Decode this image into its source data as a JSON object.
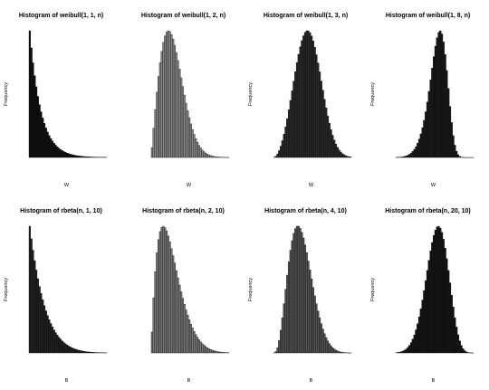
{
  "chart_data": [
    {
      "type": "bar",
      "title": "Histogram of weibull(1, 1, n)",
      "xlabel": "W",
      "ylabel": "Frequency",
      "dist": "weibull",
      "shape": 1,
      "fill": "#111111"
    },
    {
      "type": "bar",
      "title": "Histogram of weibull(1, 2, n)",
      "xlabel": "W",
      "ylabel": "",
      "dist": "weibull",
      "shape": 2,
      "fill": "#8a8a8a"
    },
    {
      "type": "bar",
      "title": "Histogram of weibull(1, 3, n)",
      "xlabel": "W",
      "ylabel": "Frequency",
      "dist": "weibull",
      "shape": 3,
      "fill": "#2a2a2a"
    },
    {
      "type": "bar",
      "title": "Histogram of weibull(1, 8, n)",
      "xlabel": "W",
      "ylabel": "Frequency",
      "dist": "weibull",
      "shape": 8,
      "fill": "#1a1a1a"
    },
    {
      "type": "bar",
      "title": "Histogram of rbeta(n, 1, 10)",
      "xlabel": "B",
      "ylabel": "Frequency",
      "dist": "beta",
      "a": 1,
      "b": 10,
      "fill": "#222222"
    },
    {
      "type": "bar",
      "title": "Histogram of rbeta(n, 2, 10)",
      "xlabel": "B",
      "ylabel": "",
      "dist": "beta",
      "a": 2,
      "b": 10,
      "fill": "#7a7a7a"
    },
    {
      "type": "bar",
      "title": "Histogram of rbeta(n, 4, 10)",
      "xlabel": "B",
      "ylabel": "Frequency",
      "dist": "beta",
      "a": 4,
      "b": 10,
      "fill": "#555555"
    },
    {
      "type": "bar",
      "title": "Histogram of rbeta(n, 20, 10)",
      "xlabel": "B",
      "ylabel": "Frequency",
      "dist": "beta",
      "a": 20,
      "b": 10,
      "fill": "#161616"
    }
  ]
}
